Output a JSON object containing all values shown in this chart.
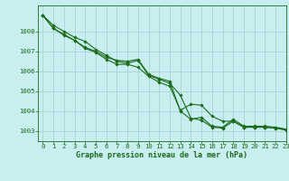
{
  "title": "Graphe pression niveau de la mer (hPa)",
  "background_color": "#c8eef0",
  "grid_color": "#a8d4d8",
  "line_color": "#1a6b1a",
  "marker_color": "#1a6b1a",
  "xlim": [
    -0.5,
    23
  ],
  "ylim": [
    1002.5,
    1009.3
  ],
  "yticks": [
    1003,
    1004,
    1005,
    1006,
    1007,
    1008
  ],
  "xticks": [
    0,
    1,
    2,
    3,
    4,
    5,
    6,
    7,
    8,
    9,
    10,
    11,
    12,
    13,
    14,
    15,
    16,
    17,
    18,
    19,
    20,
    21,
    22,
    23
  ],
  "series": [
    [
      1008.8,
      1008.3,
      1008.0,
      1007.7,
      1007.5,
      1007.1,
      1006.8,
      1006.5,
      1006.4,
      1006.55,
      1005.8,
      1005.6,
      1005.4,
      1004.8,
      1003.65,
      1003.55,
      1003.2,
      1003.15,
      1003.5,
      1003.2,
      1003.2,
      1003.2,
      1003.15,
      1003.1
    ],
    [
      1008.8,
      1008.15,
      1007.85,
      1007.55,
      1007.2,
      1007.0,
      1006.7,
      1006.55,
      1006.5,
      1006.6,
      1005.85,
      1005.65,
      1005.5,
      1004.0,
      1003.6,
      1003.7,
      1003.25,
      1003.2,
      1003.6,
      1003.25,
      1003.25,
      1003.25,
      1003.2,
      1003.1
    ],
    [
      1008.8,
      1008.15,
      1007.8,
      1007.55,
      1007.15,
      1006.95,
      1006.6,
      1006.35,
      1006.35,
      1006.2,
      1005.75,
      1005.45,
      1005.25,
      1004.05,
      1004.35,
      1004.3,
      1003.75,
      1003.5,
      1003.5,
      1003.2,
      1003.2,
      1003.2,
      1003.15,
      1003.05
    ]
  ],
  "figsize": [
    3.2,
    2.0
  ],
  "dpi": 100,
  "label_fontsize": 6.0,
  "tick_fontsize": 5.2
}
